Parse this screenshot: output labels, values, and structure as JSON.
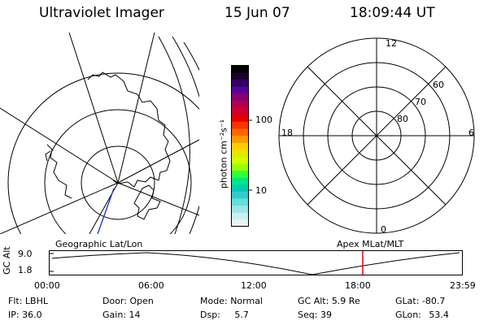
{
  "header": {
    "title": "Ultraviolet Imager",
    "date": "15 Jun 07",
    "time": "18:09:44 UT"
  },
  "colorbar": {
    "label": "photon cm⁻²s⁻¹",
    "ticks": [
      "100",
      "10"
    ],
    "colors": [
      "#000000",
      "#1a0033",
      "#330066",
      "#5c0099",
      "#8a0073",
      "#b3004d",
      "#cc0033",
      "#e60000",
      "#ff3300",
      "#ff6600",
      "#ff9900",
      "#ffcc00",
      "#e6e600",
      "#ccff00",
      "#99ff00",
      "#33ff33",
      "#00e68a",
      "#00ccb3",
      "#33cccc",
      "#66dddd",
      "#99e6e6",
      "#cceeee",
      "#e6f5f5"
    ]
  },
  "polar_plot": {
    "mlt_labels": {
      "top": "12",
      "bottom": "0",
      "left": "18",
      "right": "6"
    },
    "lat_labels": [
      "60",
      "70",
      "80"
    ]
  },
  "timeline": {
    "left_title": "Geographic Lat/Lon",
    "right_title": "Apex MLat/MLT",
    "y_label": "GC Alt",
    "y_max": "9.0",
    "y_min": "1.8",
    "x_ticks": [
      "00:00",
      "06:00",
      "12:00",
      "18:00",
      "23:59"
    ],
    "marker_color": "#e60000"
  },
  "status": {
    "row1": [
      {
        "label": "Flt:",
        "value": "LBHL"
      },
      {
        "label": "Door:",
        "value": "Open"
      },
      {
        "label": "Mode:",
        "value": "Normal"
      },
      {
        "label": "GC Alt:",
        "value": "5.9 Re"
      },
      {
        "label": "GLat:",
        "value": "-80.7"
      }
    ],
    "row2": [
      {
        "label": "IP:",
        "value": "36.0"
      },
      {
        "label": "Gain:",
        "value": "14"
      },
      {
        "label": "Dsp:",
        "value": "5.7"
      },
      {
        "label": "Seq:",
        "value": "39"
      },
      {
        "label": "GLon:",
        "value": "53.4"
      }
    ]
  }
}
